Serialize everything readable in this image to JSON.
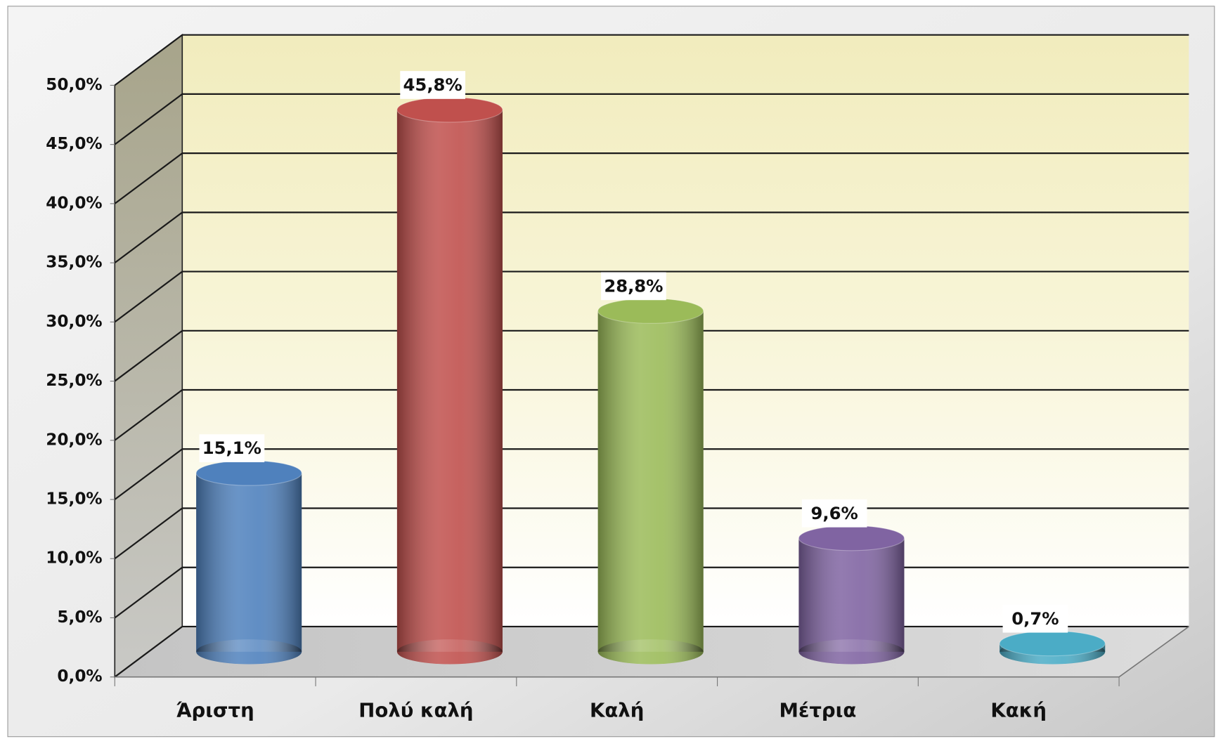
{
  "chart_data": {
    "type": "bar3d",
    "categories": [
      "Άριστη",
      "Πολύ καλή",
      "Καλή",
      "Μέτρια",
      "Κακή"
    ],
    "values": [
      15.1,
      45.8,
      28.8,
      9.6,
      0.7
    ],
    "value_labels": [
      "15,1%",
      "45,8%",
      "28,8%",
      "9,6%",
      "0,7%"
    ],
    "colors": [
      "#4f81bd",
      "#c0504d",
      "#9bbb59",
      "#8064a2",
      "#4bacc6"
    ],
    "ylim": [
      0,
      50
    ],
    "yticks": [
      {
        "value": 0,
        "label": "0,0%"
      },
      {
        "value": 5,
        "label": "5,0%"
      },
      {
        "value": 10,
        "label": "10,0%"
      },
      {
        "value": 15,
        "label": "15,0%"
      },
      {
        "value": 20,
        "label": "20,0%"
      },
      {
        "value": 25,
        "label": "25,0%"
      },
      {
        "value": 30,
        "label": "30,0%"
      },
      {
        "value": 35,
        "label": "35,0%"
      },
      {
        "value": 40,
        "label": "40,0%"
      },
      {
        "value": 45,
        "label": "45,0%"
      },
      {
        "value": 50,
        "label": "50,0%"
      }
    ],
    "grid": true
  }
}
